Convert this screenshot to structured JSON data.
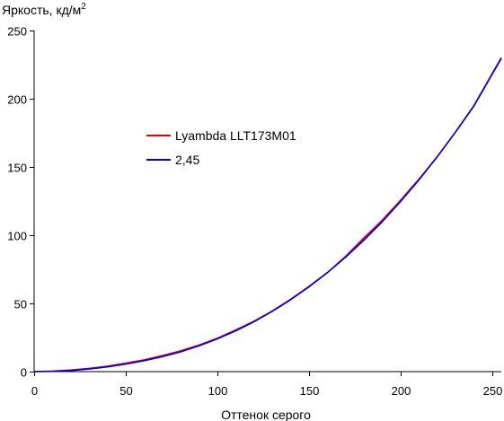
{
  "chart_data": {
    "type": "line",
    "title": "",
    "ylabel": "Яркость, кд/м",
    "ylabel_superscript": "2",
    "xlabel": "Оттенок серого",
    "xlim": [
      0,
      255
    ],
    "ylim": [
      0,
      250
    ],
    "x_ticks": [
      0,
      50,
      100,
      150,
      200,
      250
    ],
    "y_ticks": [
      0,
      50,
      100,
      150,
      200,
      250
    ],
    "grid": false,
    "legend_position": "upper-left",
    "series": [
      {
        "name": "Lyambda LLT173M01",
        "color": "#e00000",
        "x": [
          0,
          10,
          20,
          30,
          40,
          50,
          60,
          70,
          80,
          90,
          100,
          110,
          120,
          130,
          140,
          150,
          160,
          170,
          180,
          190,
          200,
          210,
          220,
          230,
          240,
          255
        ],
        "values": [
          0,
          0.4,
          1.2,
          2.4,
          4.0,
          6.2,
          8.6,
          11.8,
          15.2,
          19.5,
          24.5,
          30.5,
          37.0,
          44.5,
          53.0,
          62.5,
          72.5,
          84.5,
          98.0,
          111.0,
          125.5,
          141.0,
          157.5,
          175.5,
          194.5,
          229.5
        ]
      },
      {
        "name": "2,45",
        "color": "#0000e0",
        "x": [
          0,
          10,
          20,
          30,
          40,
          50,
          60,
          70,
          80,
          90,
          100,
          110,
          120,
          130,
          140,
          150,
          160,
          170,
          180,
          190,
          200,
          210,
          220,
          230,
          240,
          255
        ],
        "values": [
          0,
          0.2,
          0.8,
          1.9,
          3.5,
          5.5,
          8.0,
          11.0,
          14.5,
          18.9,
          24.0,
          29.9,
          36.6,
          44.2,
          52.7,
          62.1,
          72.5,
          83.9,
          96.4,
          109.9,
          124.6,
          140.4,
          157.4,
          175.5,
          194.8,
          230.0
        ]
      }
    ]
  }
}
